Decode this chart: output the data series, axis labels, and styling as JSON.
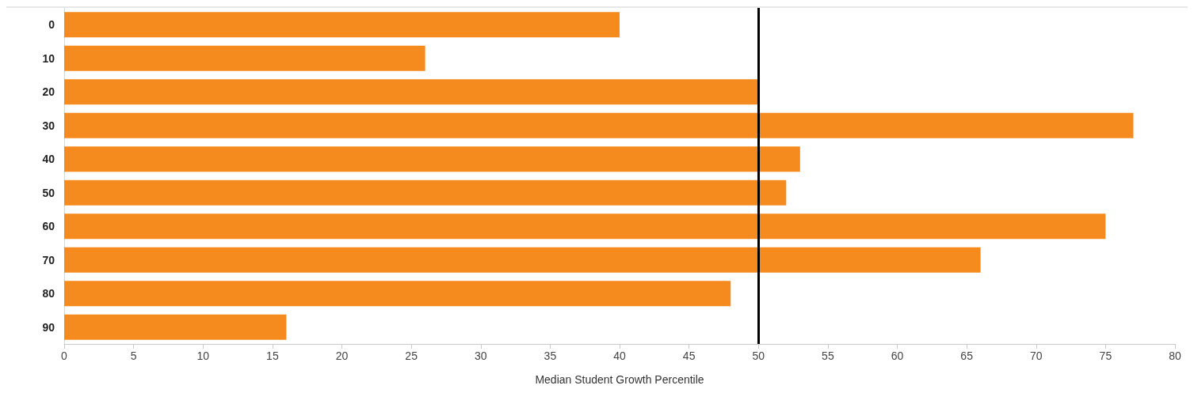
{
  "chart_data": {
    "type": "bar",
    "orientation": "horizontal",
    "xlabel": "Median Student Growth Percentile",
    "categories": [
      "0",
      "10",
      "20",
      "30",
      "40",
      "50",
      "60",
      "70",
      "80",
      "90"
    ],
    "values": [
      40,
      26,
      50,
      77,
      53,
      52,
      75,
      66,
      48,
      16
    ],
    "color": "#f58b1f",
    "xlim": [
      0,
      80
    ],
    "xticks": [
      0,
      5,
      10,
      15,
      20,
      25,
      30,
      35,
      40,
      45,
      50,
      55,
      60,
      65,
      70,
      75,
      80
    ],
    "ref_lines": [
      {
        "axis": "x",
        "value": 50,
        "color": "#000000"
      }
    ],
    "grid": false
  }
}
